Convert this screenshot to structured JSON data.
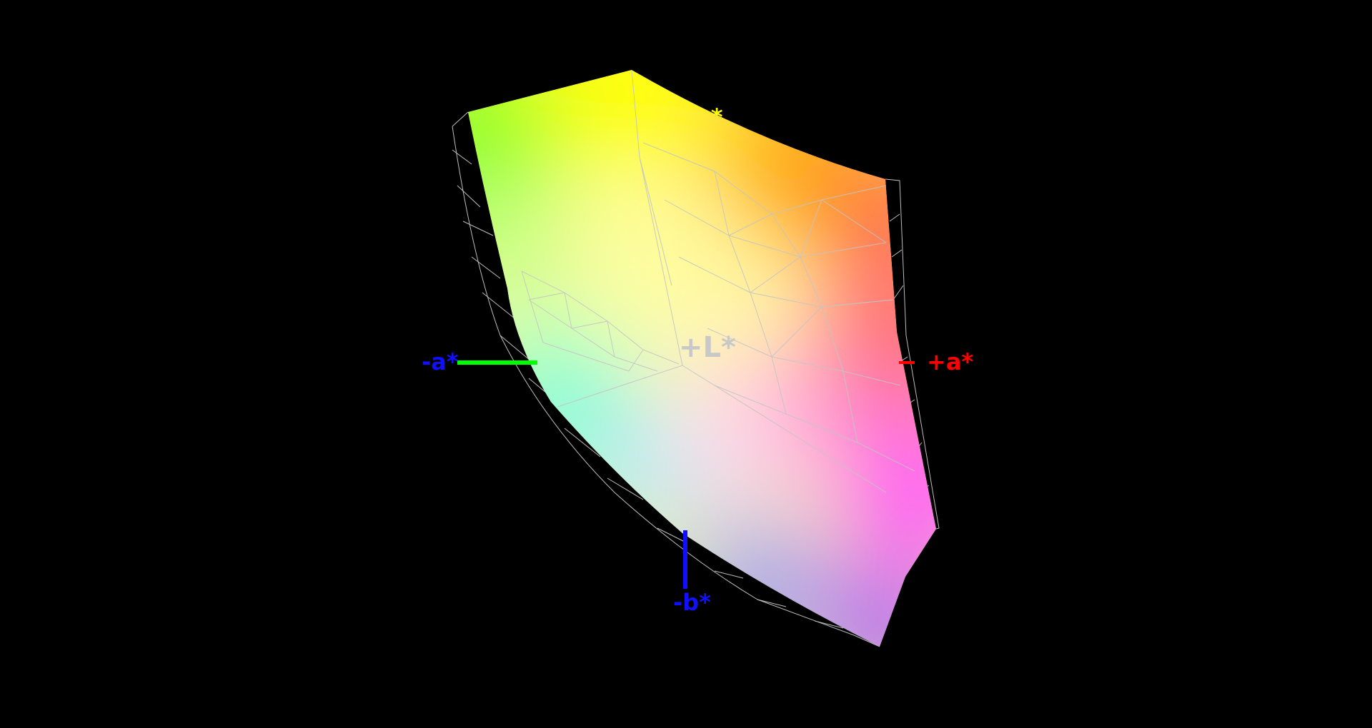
{
  "axes": {
    "minus_a": {
      "label": "-a*",
      "color": "#1010ff",
      "line_color": "#00ff00"
    },
    "plus_a": {
      "label": "+a*",
      "color": "#ff0000",
      "line_color": "#ff0000"
    },
    "minus_b": {
      "label": "-b*",
      "color": "#1010ff",
      "line_color": "#1010ff"
    },
    "plus_b": {
      "label": "+b*",
      "color": "#ffff00"
    },
    "plus_l": {
      "label": "+L*",
      "color": "#c8c8c8"
    }
  },
  "background": "#000000",
  "wireframe_color": "#c0c0c0"
}
